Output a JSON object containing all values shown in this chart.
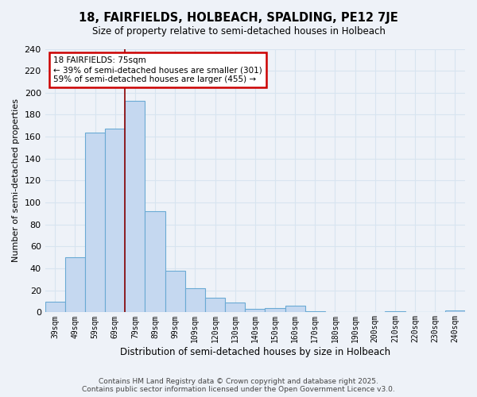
{
  "title": "18, FAIRFIELDS, HOLBEACH, SPALDING, PE12 7JE",
  "subtitle": "Size of property relative to semi-detached houses in Holbeach",
  "xlabel": "Distribution of semi-detached houses by size in Holbeach",
  "ylabel": "Number of semi-detached properties",
  "categories": [
    "39sqm",
    "49sqm",
    "59sqm",
    "69sqm",
    "79sqm",
    "89sqm",
    "99sqm",
    "109sqm",
    "120sqm",
    "130sqm",
    "140sqm",
    "150sqm",
    "160sqm",
    "170sqm",
    "180sqm",
    "190sqm",
    "200sqm",
    "210sqm",
    "220sqm",
    "230sqm",
    "240sqm"
  ],
  "values": [
    10,
    50,
    164,
    167,
    193,
    92,
    38,
    22,
    13,
    9,
    3,
    4,
    6,
    1,
    0,
    0,
    0,
    1,
    0,
    0,
    2
  ],
  "bar_color": "#c5d8f0",
  "bar_edge_color": "#6aaad4",
  "vline_x": 3.5,
  "vline_color": "#8b0000",
  "annotation_title": "18 FAIRFIELDS: 75sqm",
  "annotation_line1": "← 39% of semi-detached houses are smaller (301)",
  "annotation_line2": "59% of semi-detached houses are larger (455) →",
  "annotation_box_color": "#ffffff",
  "annotation_box_edge_color": "#cc0000",
  "ylim": [
    0,
    240
  ],
  "yticks": [
    0,
    20,
    40,
    60,
    80,
    100,
    120,
    140,
    160,
    180,
    200,
    220,
    240
  ],
  "background_color": "#eef2f8",
  "grid_color": "#d8e4f0",
  "footer_line1": "Contains HM Land Registry data © Crown copyright and database right 2025.",
  "footer_line2": "Contains public sector information licensed under the Open Government Licence v3.0."
}
